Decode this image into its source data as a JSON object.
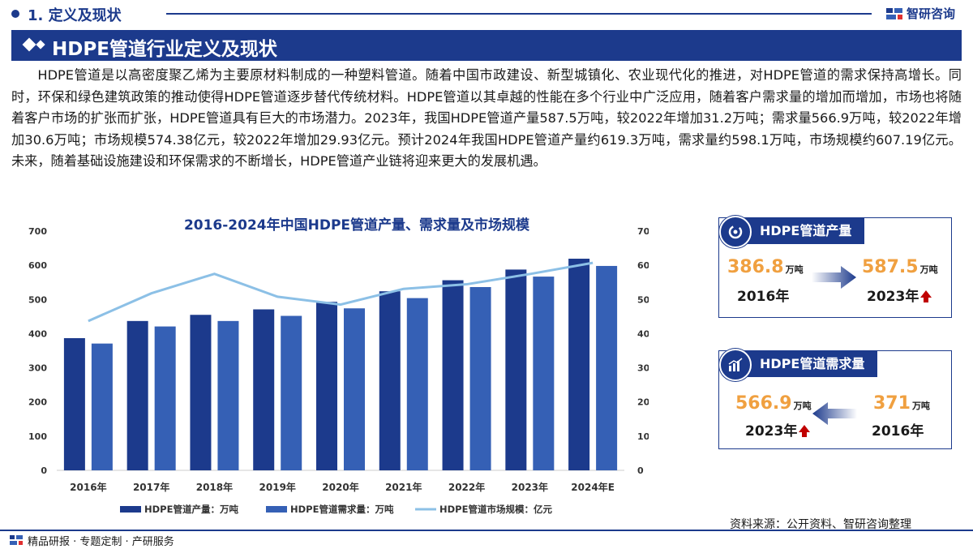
{
  "header": {
    "section_title": "1. 定义及现状",
    "brand": "智研咨询"
  },
  "banner": {
    "title": "HDPE管道行业定义及现状"
  },
  "paragraph": "HDPE管道是以高密度聚乙烯为主要原材料制成的一种塑料管道。随着中国市政建设、新型城镇化、农业现代化的推进，对HDPE管道的需求保持高增长。同时，环保和绿色建筑政策的推动使得HDPE管道逐步替代传统材料。HDPE管道以其卓越的性能在多个行业中广泛应用，随着客户需求量的增加而增加，市场也将随着客户市场的扩张而扩张，HDPE管道具有巨大的市场潜力。2023年，我国HDPE管道产量587.5万吨，较2022年增加31.2万吨；需求量566.9万吨，较2022年增加30.6万吨；市场规模574.38亿元，较2022年增加29.93亿元。预计2024年我国HDPE管道产量约619.3万吨，需求量约598.1万吨，市场规模约607.19亿元。未来，随着基础设施建设和环保需求的不断增长，HDPE管道产业链将迎来更大的发展机遇。",
  "chart_data": {
    "type": "bar",
    "title": "2016-2024年中国HDPE管道产量、需求量及市场规模",
    "categories": [
      "2016年",
      "2017年",
      "2018年",
      "2019年",
      "2020年",
      "2021年",
      "2022年",
      "2023年",
      "2024年E"
    ],
    "y_ticks_left": [
      "0",
      "100",
      "200",
      "300",
      "400",
      "500",
      "600",
      "700"
    ],
    "y_ticks_right": [
      "0",
      "100",
      "200",
      "300",
      "400",
      "500",
      "600",
      "700"
    ],
    "ylim": [
      0,
      700
    ],
    "series": [
      {
        "name": "HDPE管道产量：万吨",
        "type": "bar",
        "color": "#1c3a8c",
        "values": [
          386.8,
          437,
          455,
          471,
          493,
          524,
          556.3,
          587.5,
          619.3
        ]
      },
      {
        "name": "HDPE管道需求量：万吨",
        "type": "bar",
        "color": "#3560b5",
        "values": [
          371,
          421,
          437,
          452,
          474,
          504,
          536.3,
          566.9,
          598.1
        ]
      },
      {
        "name": "HDPE管道市场规模：亿元",
        "type": "line",
        "color": "#8cc0e6",
        "values": [
          437,
          518,
          575,
          508,
          485,
          531,
          544.45,
          574.38,
          607.19
        ]
      }
    ],
    "legend_position": "bottom",
    "grid": false
  },
  "card_production": {
    "title": "HDPE管道产量",
    "from_value": "386.8",
    "from_unit": "万吨",
    "from_year": "2016年",
    "to_value": "587.5",
    "to_unit": "万吨",
    "to_year": "2023年"
  },
  "card_demand": {
    "title": "HDPE管道需求量",
    "left_value": "566.9",
    "left_unit": "万吨",
    "left_year": "2023年",
    "right_value": "371",
    "right_unit": "万吨",
    "right_year": "2016年"
  },
  "source": "资料来源：公开资料、智研咨询整理",
  "footer": {
    "tagline": "精品研报 · 专题定制 · 产研服务"
  },
  "colors": {
    "primary": "#1c3a8c",
    "accent": "#f0a040",
    "arrow_up": "#c00000"
  }
}
